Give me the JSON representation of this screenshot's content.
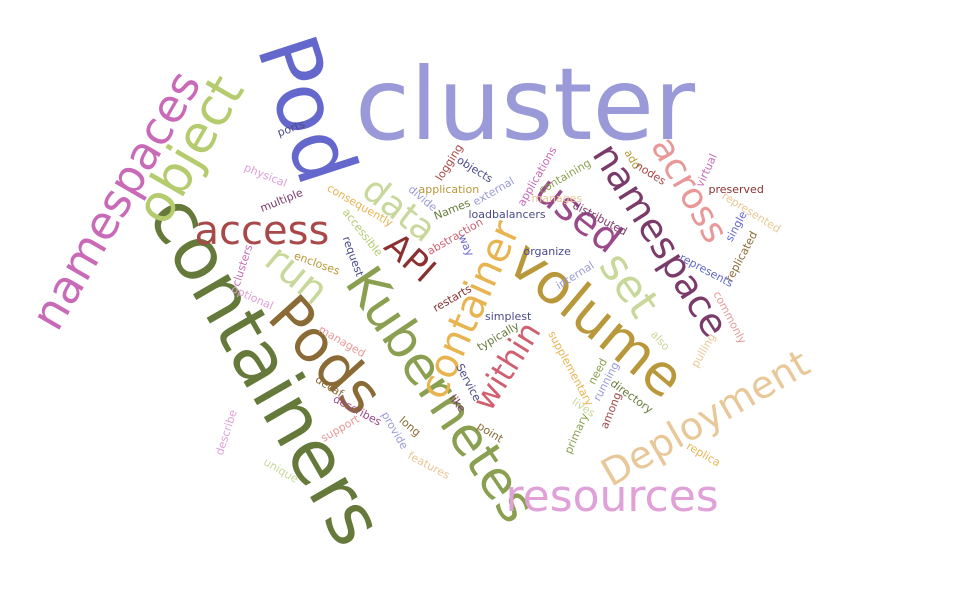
{
  "words": [
    {
      "id": "cluster",
      "text": "cluster",
      "color": "#9a9ad8"
    },
    {
      "id": "containers",
      "text": "containers",
      "color": "#657a3a"
    },
    {
      "id": "pod",
      "text": "Pod",
      "color": "#6468cc"
    },
    {
      "id": "pods",
      "text": "Pods",
      "color": "#8a6a35"
    },
    {
      "id": "kubernetes",
      "text": "Kubernetes",
      "color": "#8aa050"
    },
    {
      "id": "volume",
      "text": "volume",
      "color": "#b8983a"
    },
    {
      "id": "namespaces",
      "text": "namespaces",
      "color": "#c86ab8"
    },
    {
      "id": "object",
      "text": "object",
      "color": "#b4cb6e"
    },
    {
      "id": "namespace",
      "text": "namespace",
      "color": "#7a3a6a"
    },
    {
      "id": "resources",
      "text": "resources",
      "color": "#e0a0d8"
    },
    {
      "id": "deployment",
      "text": "Deployment",
      "color": "#e8c898"
    },
    {
      "id": "access",
      "text": "access",
      "color": "#a84848"
    },
    {
      "id": "container",
      "text": "container",
      "color": "#e8b450"
    },
    {
      "id": "used",
      "text": "used",
      "color": "#9a4a8a"
    },
    {
      "id": "across",
      "text": "across",
      "color": "#e89898"
    },
    {
      "id": "set",
      "text": "set",
      "color": "#c8d89a"
    },
    {
      "id": "run",
      "text": "run",
      "color": "#c8d89a"
    },
    {
      "id": "data",
      "text": "data",
      "color": "#c8d89a"
    },
    {
      "id": "api",
      "text": "API",
      "color": "#8a3030"
    },
    {
      "id": "within",
      "text": "within",
      "color": "#d06070"
    },
    {
      "id": "ports",
      "text": "ports",
      "color": "#4a4a8a"
    },
    {
      "id": "physical",
      "text": "physical",
      "color": "#e0a0d8"
    },
    {
      "id": "multiple",
      "text": "multiple",
      "color": "#7a3a6a"
    },
    {
      "id": "consequently",
      "text": "consequently",
      "color": "#e8b450"
    },
    {
      "id": "accessible",
      "text": "accessible",
      "color": "#b4cb6e"
    },
    {
      "id": "encloses",
      "text": "encloses",
      "color": "#b8983a"
    },
    {
      "id": "clusters",
      "text": "clusters",
      "color": "#c86ab8"
    },
    {
      "id": "optional",
      "text": "optional",
      "color": "#e0a0d8"
    },
    {
      "id": "request",
      "text": "request",
      "color": "#4a4a8a"
    },
    {
      "id": "logging",
      "text": "logging",
      "color": "#a84848"
    },
    {
      "id": "objects",
      "text": "objects",
      "color": "#4a4a8a"
    },
    {
      "id": "application",
      "text": "application",
      "color": "#b8983a"
    },
    {
      "id": "divide",
      "text": "divide",
      "color": "#9a9ad8"
    },
    {
      "id": "names",
      "text": "Names",
      "color": "#657a3a"
    },
    {
      "id": "external",
      "text": "external",
      "color": "#9a9ad8"
    },
    {
      "id": "abstraction",
      "text": "abstraction",
      "color": "#d06070"
    },
    {
      "id": "way",
      "text": "way",
      "color": "#6468cc"
    },
    {
      "id": "applications",
      "text": "applications",
      "color": "#c86ab8"
    },
    {
      "id": "containing",
      "text": "containing",
      "color": "#8aa050"
    },
    {
      "id": "manages",
      "text": "manages",
      "color": "#e8c898"
    },
    {
      "id": "loadbalancers",
      "text": "loadbalancers",
      "color": "#4a4a8a"
    },
    {
      "id": "organize",
      "text": "organize",
      "color": "#4a4a8a"
    },
    {
      "id": "distributed",
      "text": "distributed",
      "color": "#7a3a6a"
    },
    {
      "id": "add",
      "text": "add",
      "color": "#b8983a"
    },
    {
      "id": "nodes",
      "text": "nodes",
      "color": "#a84848"
    },
    {
      "id": "virtual",
      "text": "virtual",
      "color": "#c86ab8"
    },
    {
      "id": "preserved",
      "text": "preserved",
      "color": "#8a3030"
    },
    {
      "id": "represented",
      "text": "represented",
      "color": "#e8c898"
    },
    {
      "id": "single",
      "text": "single",
      "color": "#6468cc"
    },
    {
      "id": "replicated",
      "text": "replicated",
      "color": "#8a6a35"
    },
    {
      "id": "represents",
      "text": "represents",
      "color": "#6468cc"
    },
    {
      "id": "commonly",
      "text": "commonly",
      "color": "#e89898"
    },
    {
      "id": "also",
      "text": "also",
      "color": "#c8d89a"
    },
    {
      "id": "pulling",
      "text": "pulling",
      "color": "#e8c898"
    },
    {
      "id": "internal",
      "text": "internal",
      "color": "#9a9ad8"
    },
    {
      "id": "restarts",
      "text": "restarts",
      "color": "#8a3030"
    },
    {
      "id": "simplest",
      "text": "simplest",
      "color": "#4a4a8a"
    },
    {
      "id": "typically",
      "text": "typically",
      "color": "#657a3a"
    },
    {
      "id": "managed",
      "text": "managed",
      "color": "#e89898"
    },
    {
      "id": "decaf",
      "text": "decaf",
      "color": "#8a6a35"
    },
    {
      "id": "describes",
      "text": "describes",
      "color": "#9a4a8a"
    },
    {
      "id": "supplementary",
      "text": "supplementary",
      "color": "#e8b450"
    },
    {
      "id": "need",
      "text": "need",
      "color": "#8aa050"
    },
    {
      "id": "running",
      "text": "running",
      "color": "#9a9ad8"
    },
    {
      "id": "directory",
      "text": "directory",
      "color": "#657a3a"
    },
    {
      "id": "among",
      "text": "among",
      "color": "#a84848"
    },
    {
      "id": "lives",
      "text": "lives",
      "color": "#c8d89a"
    },
    {
      "id": "primary",
      "text": "primary",
      "color": "#8aa050"
    },
    {
      "id": "service",
      "text": "Service",
      "color": "#4a4a8a"
    },
    {
      "id": "like",
      "text": "like",
      "color": "#7a3a6a"
    },
    {
      "id": "point",
      "text": "point",
      "color": "#8a6a35"
    },
    {
      "id": "support",
      "text": "support",
      "color": "#e89898"
    },
    {
      "id": "long",
      "text": "long",
      "color": "#8a6a35"
    },
    {
      "id": "provide",
      "text": "provide",
      "color": "#9a9ad8"
    },
    {
      "id": "features",
      "text": "features",
      "color": "#e8c898"
    },
    {
      "id": "describe",
      "text": "describe",
      "color": "#e0a0d8"
    },
    {
      "id": "unique",
      "text": "unique",
      "color": "#c8d89a"
    },
    {
      "id": "replica",
      "text": "replica",
      "color": "#e8b450"
    }
  ]
}
